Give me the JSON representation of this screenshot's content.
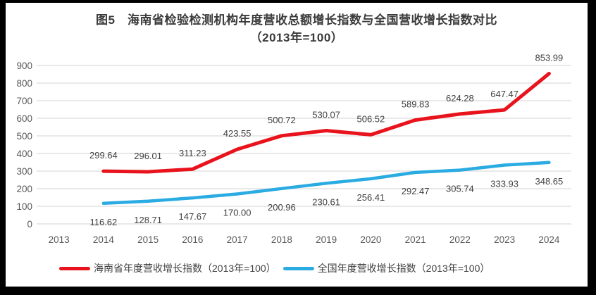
{
  "title": {
    "line1": "图5　海南省检验检测机构年度营收总额增长指数与全国营收增长指数对比",
    "line2": "（2013年=100）"
  },
  "chart_data": {
    "type": "line",
    "x": [
      "2013",
      "2014",
      "2015",
      "2016",
      "2017",
      "2018",
      "2019",
      "2020",
      "2021",
      "2022",
      "2023",
      "2024"
    ],
    "series": [
      {
        "id": "hainan",
        "name": "海南省年度营收增长指数（2013年=100）",
        "color": "#e8131c",
        "label_position": "above",
        "values": [
          null,
          299.64,
          296.01,
          311.23,
          423.55,
          500.72,
          530.07,
          506.52,
          589.83,
          624.28,
          647.47,
          853.99
        ],
        "labels": [
          "",
          "299.64",
          "296.01",
          "311.23",
          "423.55",
          "500.72",
          "530.07",
          "506.52",
          "589.83",
          "624.28",
          "647.47",
          "853.99"
        ]
      },
      {
        "id": "national",
        "name": "全国年度营收增长指数（2013年=100）",
        "color": "#2aabe2",
        "label_position": "below",
        "values": [
          null,
          116.62,
          128.71,
          147.67,
          170.0,
          200.96,
          230.61,
          256.41,
          292.47,
          305.74,
          333.93,
          348.65
        ],
        "labels": [
          "",
          "116.62",
          "128.71",
          "147.67",
          "170.00",
          "200.96",
          "230.61",
          "256.41",
          "292.47",
          "305.74",
          "333.93",
          "348.65"
        ]
      }
    ],
    "ylim": [
      0,
      900
    ],
    "ytick_step": 100,
    "yticks": [
      "0",
      "100",
      "200",
      "300",
      "400",
      "500",
      "600",
      "700",
      "800",
      "900"
    ],
    "grid": true,
    "legend_position": "bottom"
  },
  "colors": {
    "frame": "#000000",
    "background": "#ffffff",
    "gridline": "#dcdcdc",
    "axis_text": "#595959",
    "data_label_text": "#404040",
    "title_text": "#3a3a3a",
    "legend_text": "#404040"
  }
}
